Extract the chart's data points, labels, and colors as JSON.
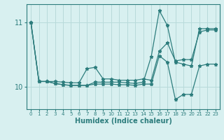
{
  "title": "",
  "xlabel": "Humidex (Indice chaleur)",
  "bg_color": "#d8f0f0",
  "line_color": "#2d7d7d",
  "grid_color": "#b8dada",
  "xlim": [
    -0.5,
    23.5
  ],
  "ylim": [
    9.65,
    11.28
  ],
  "yticks": [
    10,
    11
  ],
  "xticks": [
    0,
    1,
    2,
    3,
    4,
    5,
    6,
    7,
    8,
    9,
    10,
    11,
    12,
    13,
    14,
    15,
    16,
    17,
    18,
    19,
    20,
    21,
    22,
    23
  ],
  "series": [
    {
      "x": [
        0,
        1,
        2,
        3,
        4,
        5,
        6,
        7,
        8,
        9,
        10,
        11,
        12,
        13,
        14,
        15,
        16,
        17,
        18,
        19,
        20,
        21,
        22,
        23
      ],
      "y": [
        11.0,
        10.08,
        10.08,
        10.08,
        10.07,
        10.06,
        10.06,
        10.28,
        10.3,
        10.12,
        10.12,
        10.1,
        10.1,
        10.1,
        10.12,
        10.1,
        10.55,
        10.68,
        10.4,
        10.42,
        10.42,
        10.85,
        10.88,
        10.88
      ]
    },
    {
      "x": [
        0,
        1,
        2,
        3,
        4,
        5,
        6,
        7,
        8,
        9,
        10,
        11,
        12,
        13,
        14,
        15,
        16,
        17,
        18,
        19,
        20,
        21,
        22,
        23
      ],
      "y": [
        11.0,
        10.08,
        10.08,
        10.05,
        10.03,
        10.02,
        10.02,
        10.02,
        10.07,
        10.07,
        10.07,
        10.07,
        10.06,
        10.05,
        10.07,
        10.47,
        11.18,
        10.95,
        10.38,
        10.35,
        10.32,
        10.9,
        10.9,
        10.9
      ]
    },
    {
      "x": [
        0,
        1,
        2,
        3,
        4,
        5,
        6,
        7,
        8,
        9,
        10,
        11,
        12,
        13,
        14,
        15,
        16,
        17,
        18,
        19,
        20,
        21,
        22,
        23
      ],
      "y": [
        11.0,
        10.08,
        10.08,
        10.05,
        10.03,
        10.02,
        10.02,
        10.02,
        10.04,
        10.04,
        10.04,
        10.03,
        10.03,
        10.02,
        10.04,
        10.04,
        10.48,
        10.38,
        9.8,
        9.88,
        9.88,
        10.32,
        10.35,
        10.35
      ]
    }
  ]
}
